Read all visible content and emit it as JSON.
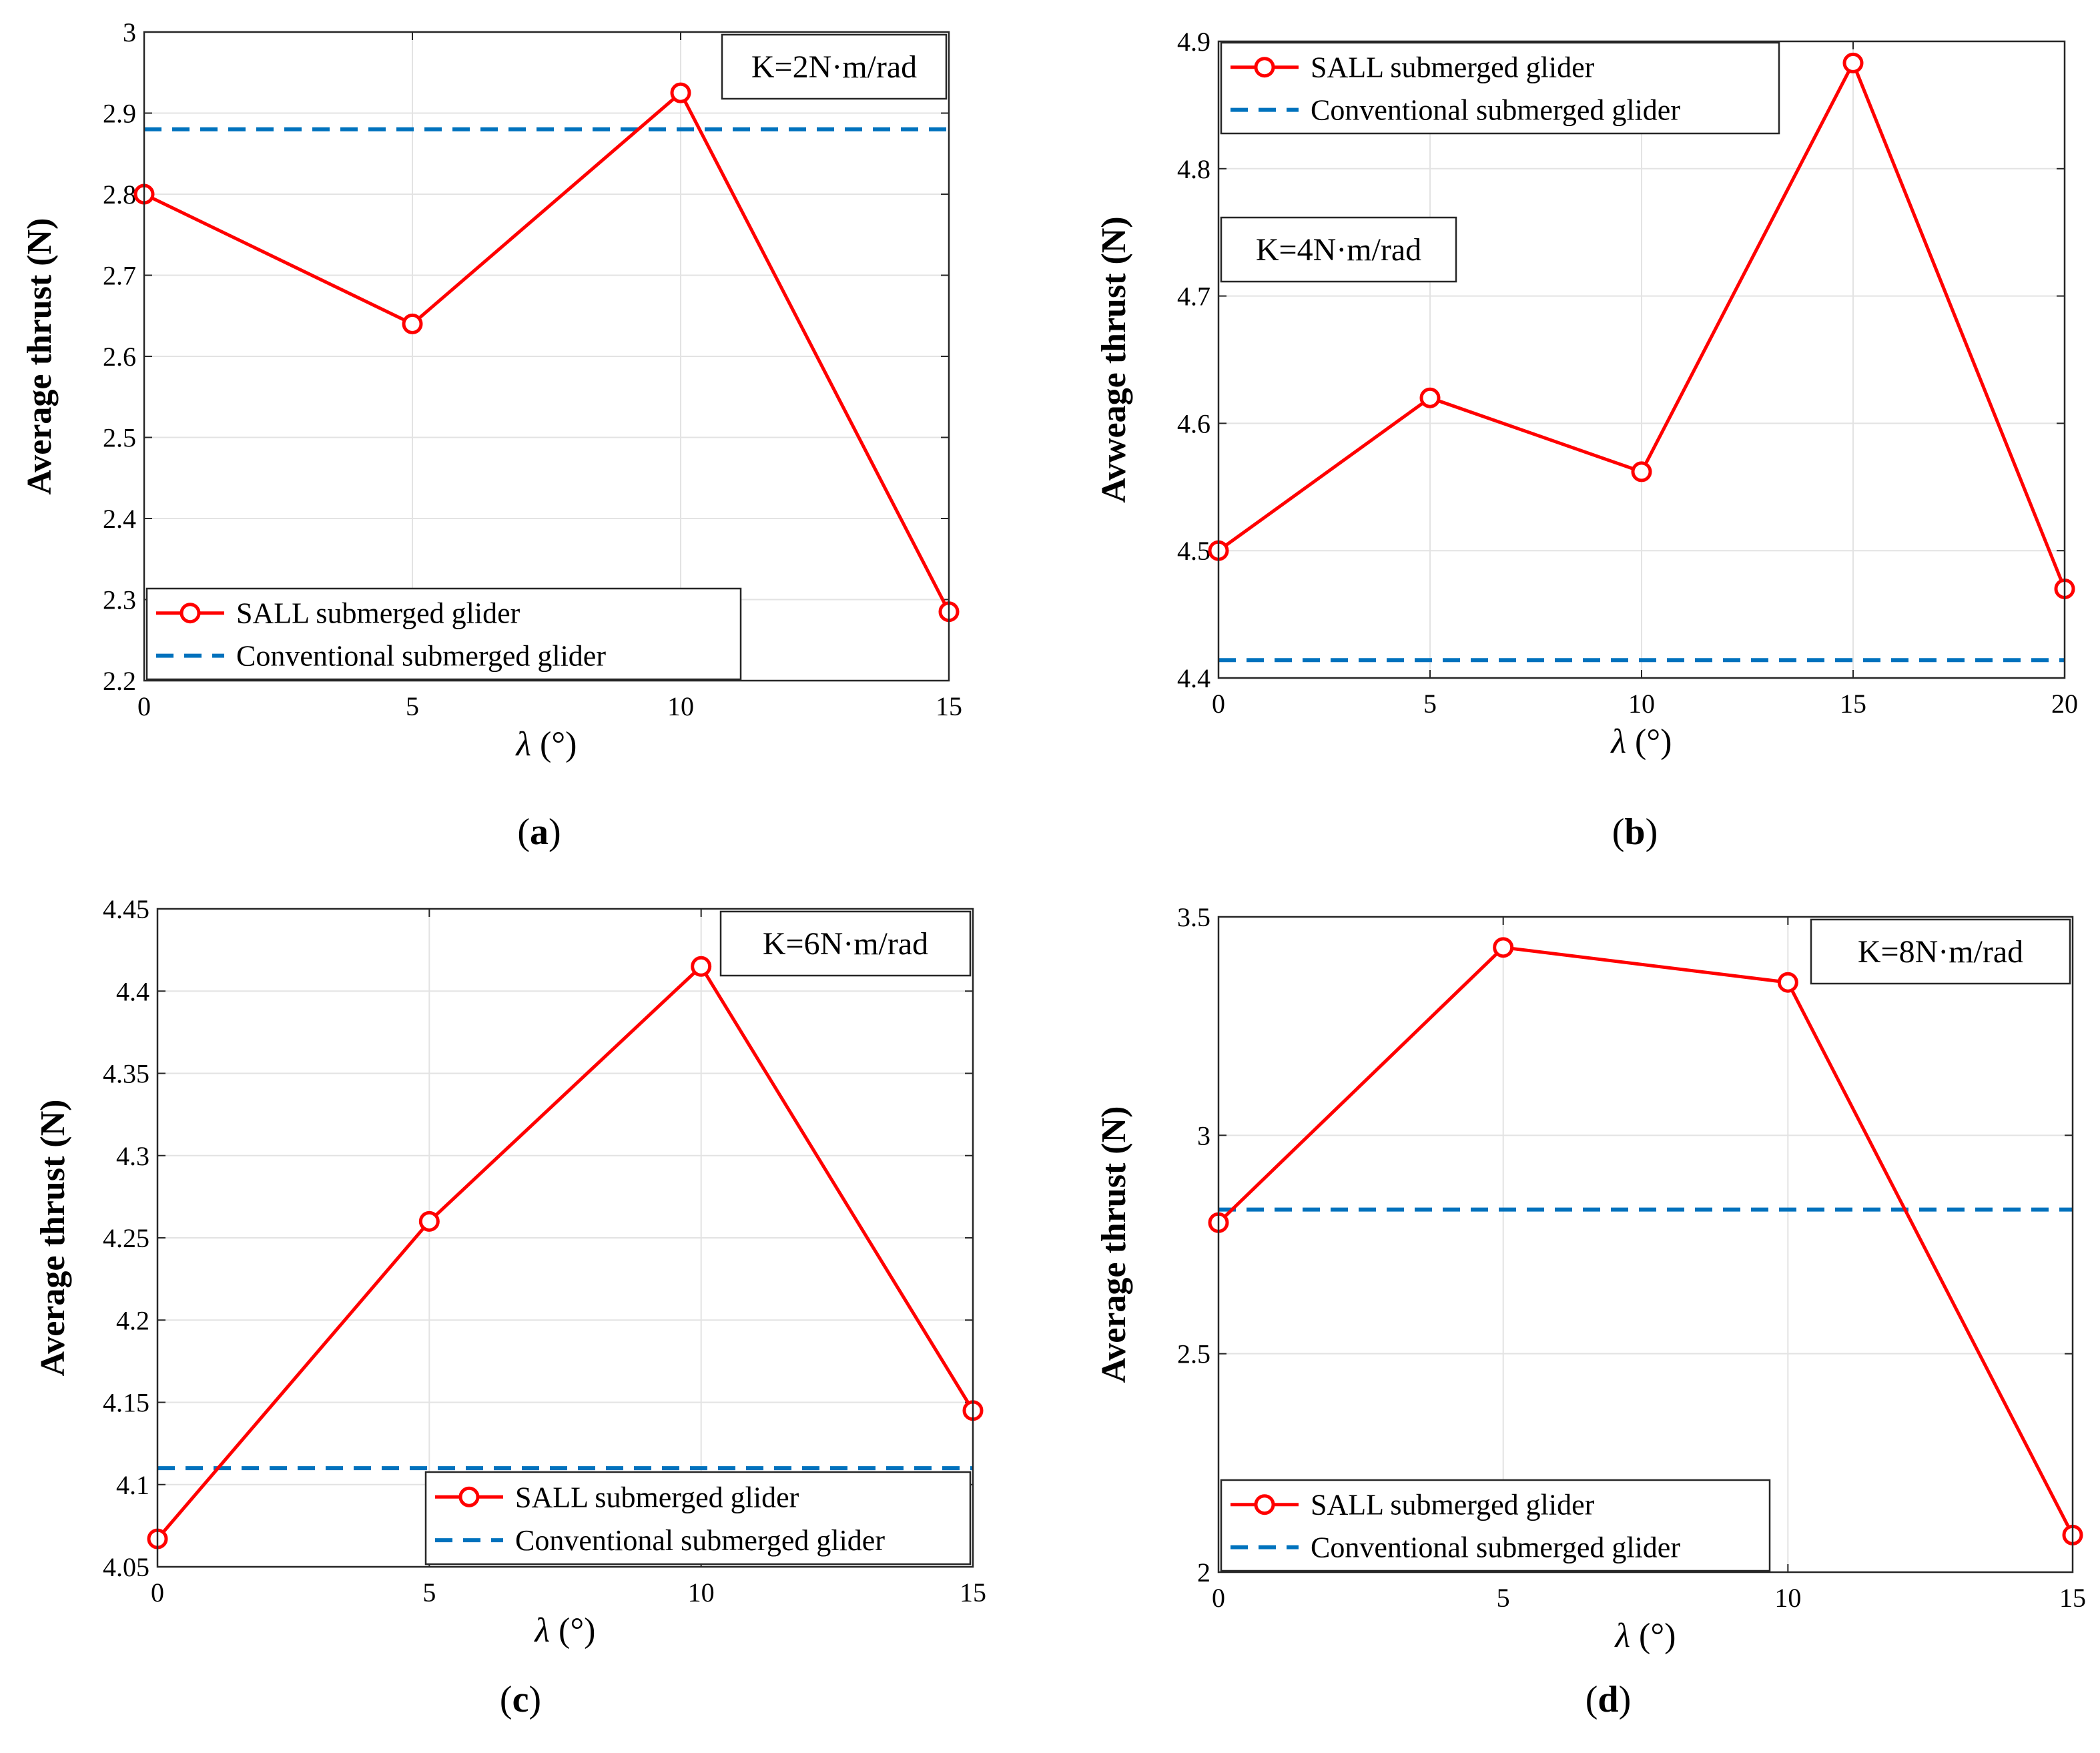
{
  "chart_data": [
    {
      "type": "line",
      "panel_label": "a",
      "annotation": "K=2N·m/rad",
      "xlabel_symbol": "λ",
      "xlabel_unit": " (°)",
      "ylabel": "Average thrust (N)",
      "xlim": [
        0,
        15
      ],
      "ylim": [
        2.2,
        3.0
      ],
      "xticks": [
        0,
        5,
        10,
        15
      ],
      "yticks": [
        2.2,
        2.3,
        2.4,
        2.5,
        2.6,
        2.7,
        2.8,
        2.9,
        3.0
      ],
      "ytick_labels": [
        "2.2",
        "2.3",
        "2.4",
        "2.5",
        "2.6",
        "2.7",
        "2.8",
        "2.9",
        "3"
      ],
      "legend_position": "bottom-left",
      "annotation_position": "top-right",
      "series": [
        {
          "name": "SALL submerged glider",
          "style": "solid-circle",
          "color": "#ff0000",
          "x": [
            0,
            5,
            10,
            15
          ],
          "y": [
            2.8,
            2.64,
            2.925,
            2.285
          ]
        },
        {
          "name": "Conventional submerged glider",
          "style": "dashed",
          "color": "#0072bd",
          "y_const": 2.88
        }
      ]
    },
    {
      "type": "line",
      "panel_label": "b",
      "annotation": "K=4N·m/rad",
      "xlabel_symbol": "λ",
      "xlabel_unit": " (°)",
      "ylabel": "Avweage thrust (N)",
      "xlim": [
        0,
        20
      ],
      "ylim": [
        4.4,
        4.9
      ],
      "xticks": [
        0,
        5,
        10,
        15,
        20
      ],
      "yticks": [
        4.4,
        4.5,
        4.6,
        4.7,
        4.8,
        4.9
      ],
      "ytick_labels": [
        "4.4",
        "4.5",
        "4.6",
        "4.7",
        "4.8",
        "4.9"
      ],
      "legend_position": "top-left",
      "annotation_position": "upper-left",
      "series": [
        {
          "name": "SALL submerged glider",
          "style": "solid-circle",
          "color": "#ff0000",
          "x": [
            0,
            5,
            10,
            15,
            20
          ],
          "y": [
            4.5,
            4.62,
            4.562,
            4.883,
            4.47
          ]
        },
        {
          "name": "Conventional submerged glider",
          "style": "dashed",
          "color": "#0072bd",
          "y_const": 4.414
        }
      ]
    },
    {
      "type": "line",
      "panel_label": "c",
      "annotation": "K=6N·m/rad",
      "xlabel_symbol": "λ",
      "xlabel_unit": " (°)",
      "ylabel": "Average thrust (N)",
      "xlim": [
        0,
        15
      ],
      "ylim": [
        4.05,
        4.45
      ],
      "xticks": [
        0,
        5,
        10,
        15
      ],
      "yticks": [
        4.05,
        4.1,
        4.15,
        4.2,
        4.25,
        4.3,
        4.35,
        4.4,
        4.45
      ],
      "ytick_labels": [
        "4.05",
        "4.1",
        "4.15",
        "4.2",
        "4.25",
        "4.3",
        "4.35",
        "4.4",
        "4.45"
      ],
      "legend_position": "bottom-right",
      "annotation_position": "top-right",
      "series": [
        {
          "name": "SALL submerged glider",
          "style": "solid-circle",
          "color": "#ff0000",
          "x": [
            0,
            5,
            10,
            15
          ],
          "y": [
            4.067,
            4.26,
            4.415,
            4.145
          ]
        },
        {
          "name": "Conventional submerged glider",
          "style": "dashed",
          "color": "#0072bd",
          "y_const": 4.11
        }
      ]
    },
    {
      "type": "line",
      "panel_label": "d",
      "annotation": "K=8N·m/rad",
      "xlabel_symbol": "λ",
      "xlabel_unit": " (°)",
      "ylabel": "Average thrust (N)",
      "xlim": [
        0,
        15
      ],
      "ylim": [
        2.0,
        3.5
      ],
      "xticks": [
        0,
        5,
        10,
        15
      ],
      "yticks": [
        2.0,
        2.5,
        3.0,
        3.5
      ],
      "ytick_labels": [
        "2",
        "2.5",
        "3",
        "3.5"
      ],
      "legend_position": "bottom-left",
      "annotation_position": "top-right",
      "series": [
        {
          "name": "SALL submerged glider",
          "style": "solid-circle",
          "color": "#ff0000",
          "x": [
            0,
            5,
            10,
            15
          ],
          "y": [
            2.8,
            3.43,
            3.35,
            2.085
          ]
        },
        {
          "name": "Conventional submerged glider",
          "style": "dashed",
          "color": "#0072bd",
          "y_const": 2.83
        }
      ]
    }
  ]
}
